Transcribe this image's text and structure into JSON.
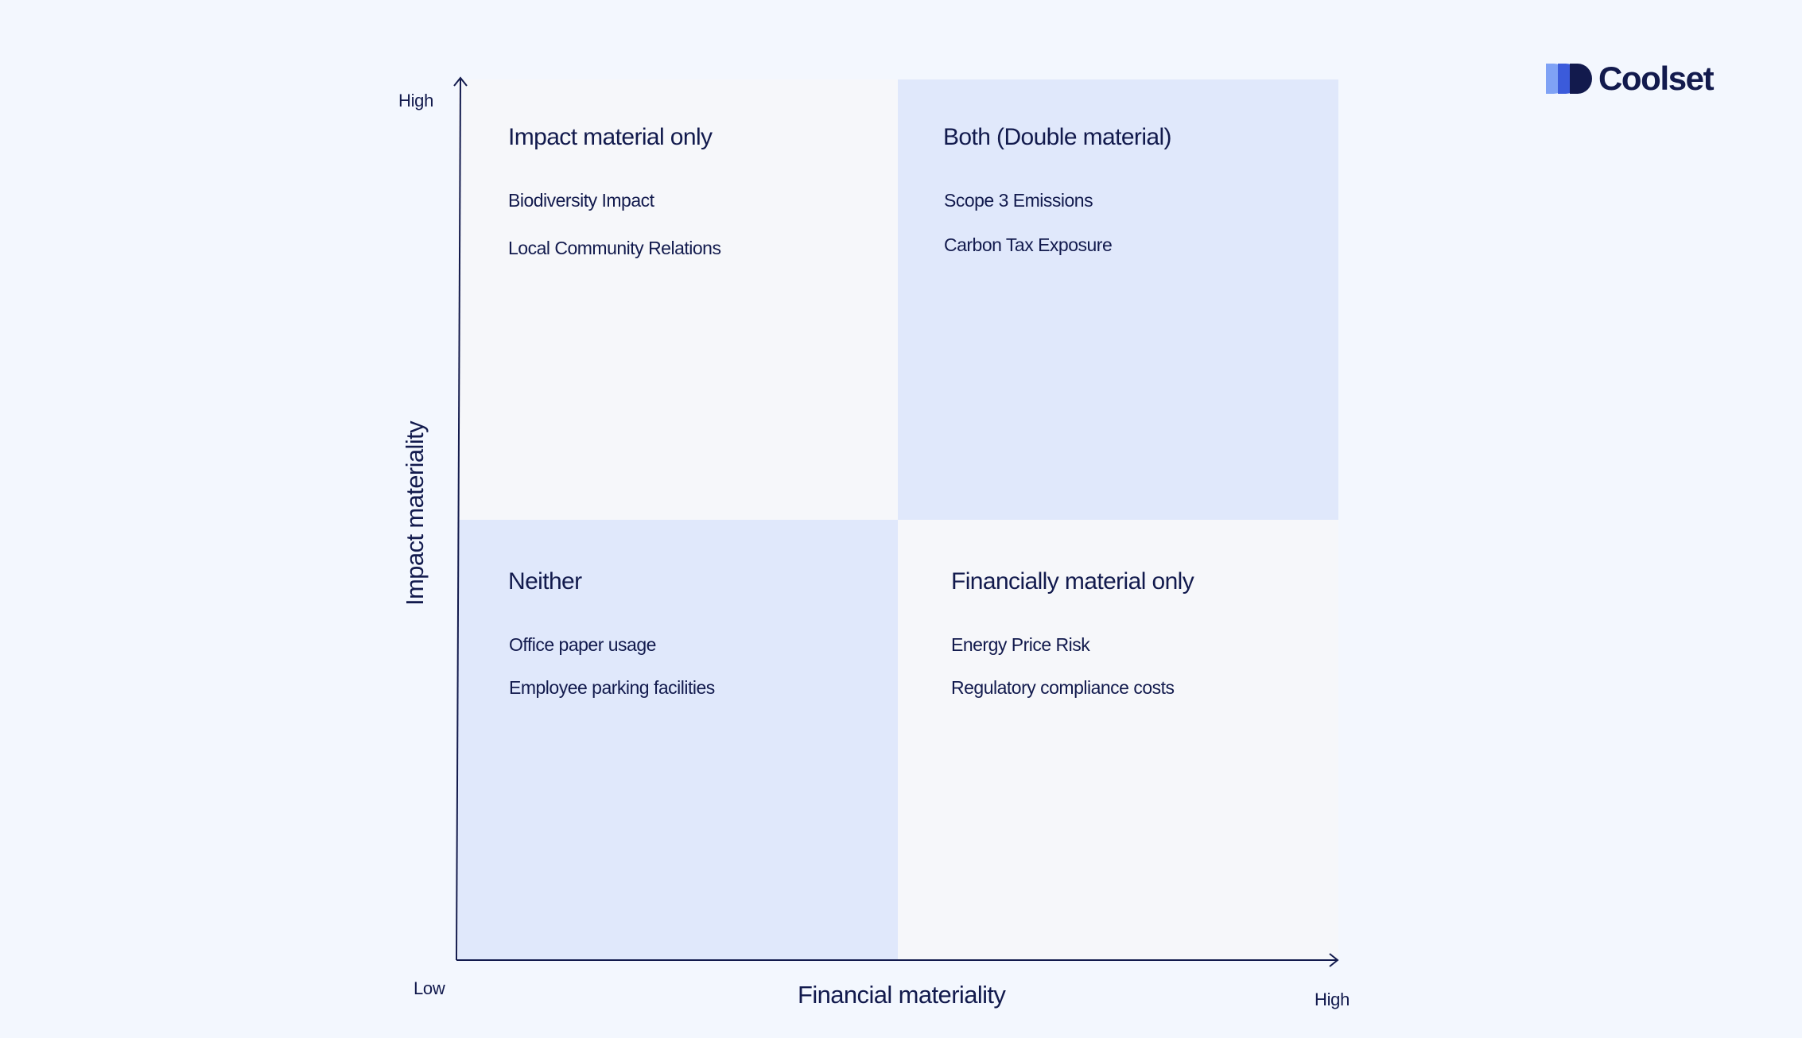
{
  "brand": {
    "name": "Coolset",
    "colors": {
      "text": "#121a4d",
      "mark_dark": "#121a4d",
      "mark_mid": "#3b5bdb",
      "mark_light": "#7fa2f5",
      "quadrant_blue": "#e0e8fb",
      "quadrant_grey": "#f6f7fa",
      "background": "#f3f7fe"
    }
  },
  "axes": {
    "y": {
      "title": "Impact materiality",
      "high_label": "High",
      "low_label": "Low"
    },
    "x": {
      "title": "Financial materiality",
      "high_label": "High"
    }
  },
  "quadrants": {
    "top_left": {
      "title": "Impact material only",
      "items": [
        "Biodiversity Impact",
        "Local Community Relations"
      ]
    },
    "top_right": {
      "title": "Both (Double material)",
      "items": [
        "Scope 3 Emissions",
        "Carbon Tax Exposure"
      ]
    },
    "bottom_left": {
      "title": "Neither",
      "items": [
        "Office paper usage",
        "Employee parking facilities"
      ]
    },
    "bottom_right": {
      "title": "Financially material only",
      "items": [
        "Energy Price Risk",
        "Regulatory compliance costs"
      ]
    }
  }
}
